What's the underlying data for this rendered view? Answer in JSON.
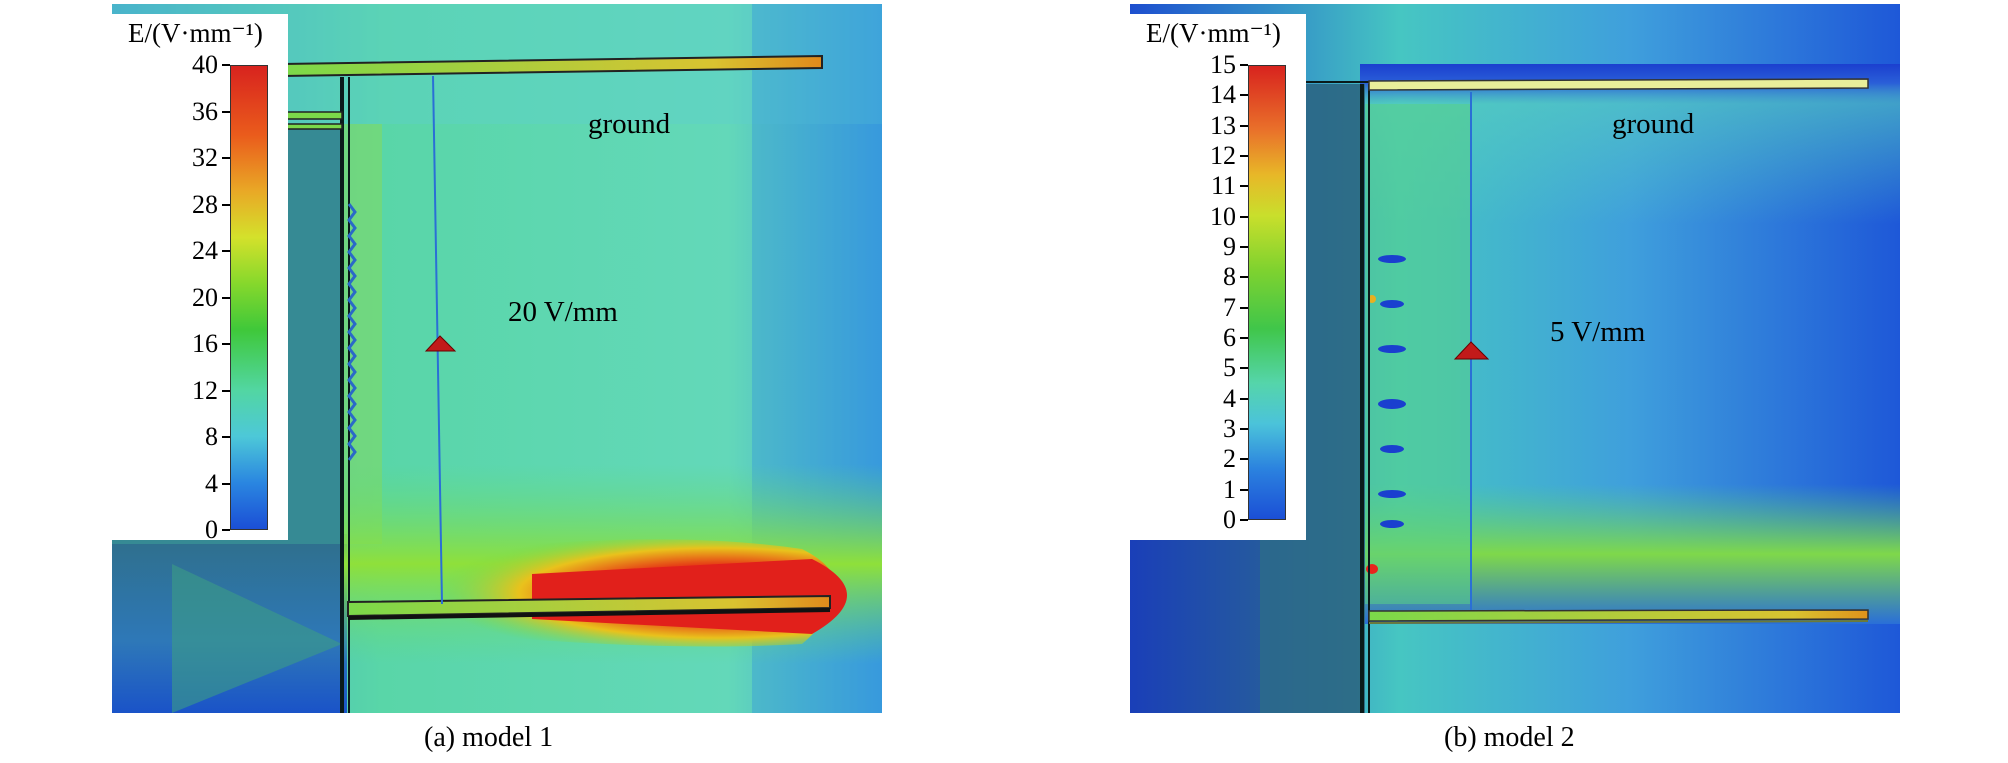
{
  "panels": [
    {
      "id": "a",
      "caption": "(a) model 1",
      "colorbar_title": "E/(V·mm⁻¹)",
      "colorbar_ticks": [
        "40",
        "36",
        "32",
        "28",
        "24",
        "20",
        "16",
        "12",
        "8",
        "4",
        "0"
      ],
      "ground_label": "ground",
      "field_label": "20 V/mm"
    },
    {
      "id": "b",
      "caption": "(b) model 2",
      "colorbar_title": "E/(V·mm⁻¹)",
      "colorbar_ticks": [
        "15",
        "14",
        "13",
        "12",
        "11",
        "10",
        "9",
        "8",
        "7",
        "6",
        "5",
        "4",
        "3",
        "2",
        "1",
        "0"
      ],
      "ground_label": "ground",
      "field_label": "5 V/mm"
    }
  ],
  "colors": {
    "scale_top": "#d81e1e",
    "scale_mid": "#3fc83a",
    "scale_bottom": "#1b4fd6"
  }
}
